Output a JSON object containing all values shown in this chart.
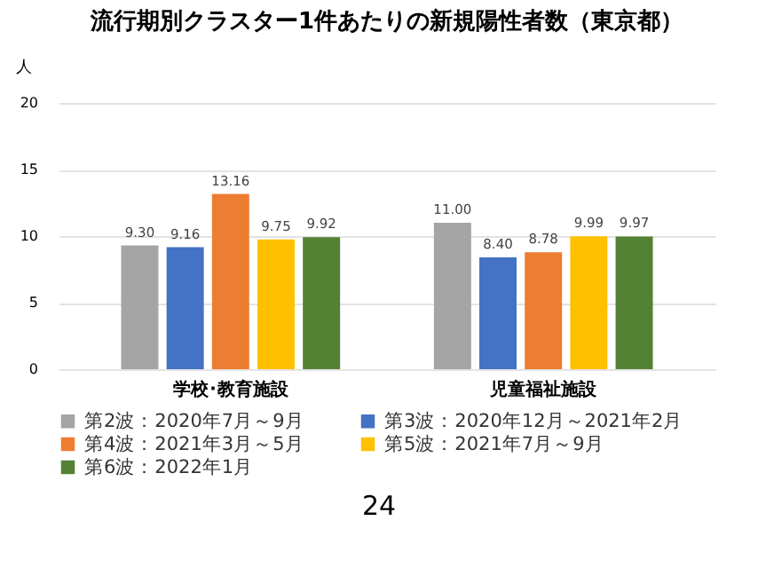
{
  "chart_data": {
    "type": "bar",
    "title": "流行期別クラスター1件あたりの新規陽性者数（東京都）",
    "ylabel": "人",
    "categories": [
      "学校･教育施設",
      "児童福祉施設"
    ],
    "series": [
      {
        "name": "第2波：2020年7月～9月",
        "color": "#a5a5a5",
        "values": [
          9.3,
          11.0
        ],
        "value_labels": [
          "9.30",
          "11.00"
        ]
      },
      {
        "name": "第3波：2020年12月～2021年2月",
        "color": "#4472c4",
        "values": [
          9.16,
          8.4
        ],
        "value_labels": [
          "9.16",
          "8.40"
        ]
      },
      {
        "name": "第4波：2021年3月～5月",
        "color": "#ed7d31",
        "values": [
          13.16,
          8.78
        ],
        "value_labels": [
          "13.16",
          "8.78"
        ]
      },
      {
        "name": "第5波：2021年7月～9月",
        "color": "#ffc000",
        "values": [
          9.75,
          9.99
        ],
        "value_labels": [
          "9.75",
          "9.99"
        ]
      },
      {
        "name": "第6波：2022年1月",
        "color": "#548235",
        "values": [
          9.92,
          9.97
        ],
        "value_labels": [
          "9.92",
          "9.97"
        ]
      }
    ],
    "ylim": [
      0,
      20
    ],
    "yticks": [
      0,
      5,
      10,
      15,
      20
    ],
    "grid": "y",
    "legend": "bottom",
    "annotations": [
      "24"
    ]
  }
}
